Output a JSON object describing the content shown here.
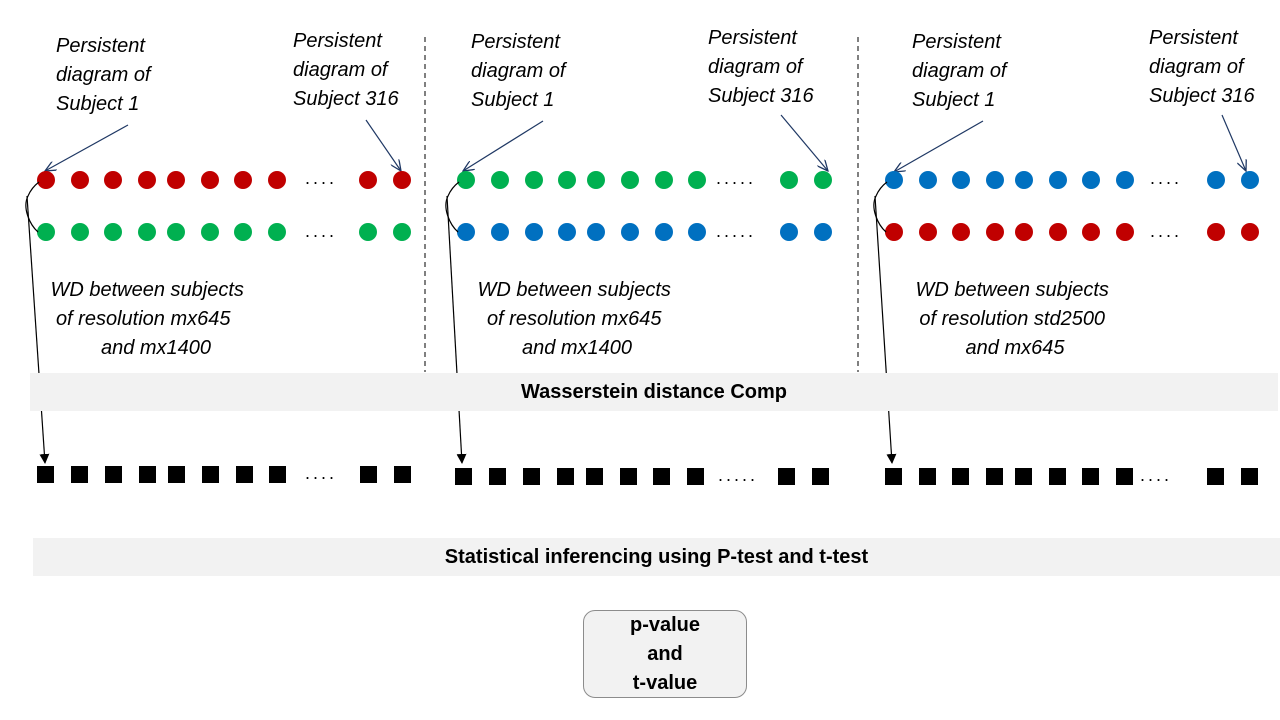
{
  "panels": [
    {
      "label_first": [
        "Persistent",
        "diagram of",
        "Subject 1"
      ],
      "label_last": [
        "Persistent",
        "diagram of",
        "Subject 316"
      ],
      "top_row_color": "#c00000",
      "bottom_row_color": "#00b050",
      "ellipsis": "....",
      "wd_text": [
        "WD between subjects",
        "of resolution mx645",
        "and mx1400"
      ]
    },
    {
      "label_first": [
        "Persistent",
        "diagram of",
        "Subject 1"
      ],
      "label_last": [
        "Persistent",
        "diagram of",
        "Subject 316"
      ],
      "top_row_color": "#00b050",
      "bottom_row_color": "#0070c0",
      "ellipsis": ".....",
      "wd_text": [
        "WD between subjects",
        "of resolution mx645",
        "and mx1400"
      ]
    },
    {
      "label_first": [
        "Persistent",
        "diagram of",
        "Subject 1"
      ],
      "label_last": [
        "Persistent",
        "diagram of",
        "Subject 316"
      ],
      "top_row_color": "#0070c0",
      "bottom_row_color": "#c00000",
      "ellipsis": "....",
      "wd_text": [
        "WD between subjects",
        "of resolution std2500",
        "and mx645"
      ]
    }
  ],
  "wd_bar_label": "Wasserstein distance Comp",
  "stat_bar_label": "Statistical inferencing using P-test and t-test",
  "result": {
    "line1": "p-value",
    "line2": "and",
    "line3": "t-value"
  },
  "square_color": "#000000",
  "arrow_color": "#1f3864"
}
